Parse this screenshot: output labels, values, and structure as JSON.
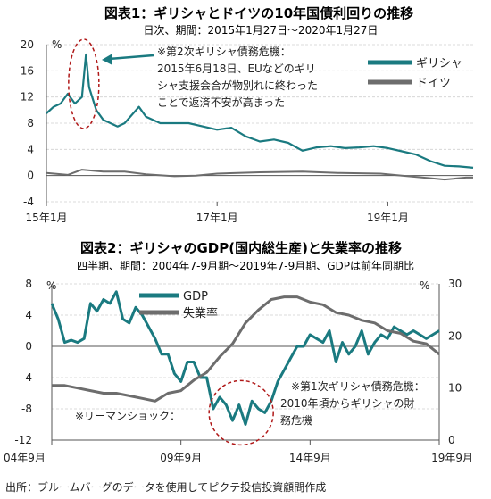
{
  "chart_data": [
    {
      "type": "line",
      "title": "図表1：ギリシャとドイツの10年国債利回りの推移",
      "subtitle": "日次、期間：2015年1月27日～2020年1月27日",
      "y_unit": "%",
      "ylim": [
        -4,
        20
      ],
      "yticks": [
        "20",
        "16",
        "12",
        "8",
        "4",
        "0",
        "-4"
      ],
      "xticks": [
        {
          "x": "2015-01",
          "label": "15年1月"
        },
        {
          "x": "2017-01",
          "label": "17年1月"
        },
        {
          "x": "2019-01",
          "label": "19年1月"
        }
      ],
      "grid": true,
      "legend": "top-right",
      "series": [
        {
          "name": "ギリシャ",
          "color": "#1a7a80",
          "points": [
            [
              "2015-01",
              9.5
            ],
            [
              "2015-02",
              10.5
            ],
            [
              "2015-03",
              11.0
            ],
            [
              "2015-04",
              12.5
            ],
            [
              "2015-05",
              11.0
            ],
            [
              "2015-06",
              12.0
            ],
            [
              "2015-06-18",
              18.5
            ],
            [
              "2015-07",
              13.5
            ],
            [
              "2015-08",
              10.0
            ],
            [
              "2015-09",
              8.5
            ],
            [
              "2015-10",
              8.0
            ],
            [
              "2015-11",
              7.5
            ],
            [
              "2015-12",
              8.0
            ],
            [
              "2016-02",
              10.5
            ],
            [
              "2016-03",
              9.0
            ],
            [
              "2016-05",
              8.0
            ],
            [
              "2016-07",
              8.0
            ],
            [
              "2016-09",
              8.0
            ],
            [
              "2016-11",
              7.5
            ],
            [
              "2017-01",
              7.0
            ],
            [
              "2017-03",
              7.3
            ],
            [
              "2017-05",
              6.0
            ],
            [
              "2017-07",
              5.2
            ],
            [
              "2017-09",
              5.5
            ],
            [
              "2017-11",
              5.0
            ],
            [
              "2018-01",
              3.8
            ],
            [
              "2018-03",
              4.3
            ],
            [
              "2018-05",
              4.5
            ],
            [
              "2018-07",
              4.2
            ],
            [
              "2018-09",
              4.3
            ],
            [
              "2018-11",
              4.5
            ],
            [
              "2019-01",
              4.2
            ],
            [
              "2019-03",
              3.7
            ],
            [
              "2019-05",
              3.2
            ],
            [
              "2019-07",
              2.2
            ],
            [
              "2019-09",
              1.5
            ],
            [
              "2019-11",
              1.4
            ],
            [
              "2020-01",
              1.2
            ]
          ]
        },
        {
          "name": "ドイツ",
          "color": "#6d6d6d",
          "points": [
            [
              "2015-01",
              0.4
            ],
            [
              "2015-04",
              0.1
            ],
            [
              "2015-06",
              0.9
            ],
            [
              "2015-09",
              0.6
            ],
            [
              "2015-12",
              0.6
            ],
            [
              "2016-03",
              0.2
            ],
            [
              "2016-07",
              -0.1
            ],
            [
              "2016-10",
              0.0
            ],
            [
              "2017-01",
              0.3
            ],
            [
              "2017-07",
              0.5
            ],
            [
              "2018-01",
              0.6
            ],
            [
              "2018-06",
              0.4
            ],
            [
              "2018-12",
              0.3
            ],
            [
              "2019-03",
              0.0
            ],
            [
              "2019-07",
              -0.4
            ],
            [
              "2019-09",
              -0.6
            ],
            [
              "2019-12",
              -0.3
            ],
            [
              "2020-01",
              -0.3
            ]
          ]
        }
      ],
      "annotation": {
        "lines": [
          "※第2次ギリシャ債務危機：",
          "2015年6月18日、EUなどのギリ",
          "シャ支援会合が物別れに終わった",
          "ことで返済不安が高まった"
        ],
        "highlight_x": "2015-06",
        "highlight_y": 14
      }
    },
    {
      "type": "line",
      "title": "図表2：ギリシャのGDP(国内総生産)と失業率の推移",
      "subtitle": "四半期、期間：2004年7-9月期～2019年7-9月期、GDPは前年同期比",
      "y_left_unit": "%",
      "y_right_unit": "%",
      "ylim_left": [
        -12,
        8
      ],
      "ylim_right": [
        0,
        30
      ],
      "yticks_left": [
        "8",
        "4",
        "0",
        "-4",
        "-8",
        "-12"
      ],
      "yticks_right": [
        "30",
        "20",
        "10",
        "0"
      ],
      "xticks": [
        {
          "x": "2004-09",
          "label": "04年9月"
        },
        {
          "x": "2009-09",
          "label": "09年9月"
        },
        {
          "x": "2014-09",
          "label": "14年9月"
        },
        {
          "x": "2019-09",
          "label": "19年9月"
        }
      ],
      "grid": true,
      "legend": "top-center",
      "series": [
        {
          "name": "GDP",
          "axis": "left",
          "color": "#1a7a80",
          "points": [
            [
              "2004-09",
              5.5
            ],
            [
              "2004-12",
              3.5
            ],
            [
              "2005-03",
              0.5
            ],
            [
              "2005-06",
              0.8
            ],
            [
              "2005-09",
              0.5
            ],
            [
              "2005-12",
              1.0
            ],
            [
              "2006-03",
              5.5
            ],
            [
              "2006-06",
              4.5
            ],
            [
              "2006-09",
              6.0
            ],
            [
              "2006-12",
              5.5
            ],
            [
              "2007-03",
              7.0
            ],
            [
              "2007-06",
              3.5
            ],
            [
              "2007-09",
              3.0
            ],
            [
              "2007-12",
              5.0
            ],
            [
              "2008-03",
              4.0
            ],
            [
              "2008-06",
              2.5
            ],
            [
              "2008-09",
              1.0
            ],
            [
              "2008-12",
              -1.0
            ],
            [
              "2009-03",
              -1.0
            ],
            [
              "2009-06",
              -3.5
            ],
            [
              "2009-09",
              -4.5
            ],
            [
              "2009-12",
              -2.0
            ],
            [
              "2010-03",
              -2.0
            ],
            [
              "2010-06",
              -4.0
            ],
            [
              "2010-09",
              -4.0
            ],
            [
              "2010-12",
              -8.0
            ],
            [
              "2011-03",
              -6.5
            ],
            [
              "2011-06",
              -7.5
            ],
            [
              "2011-09",
              -9.5
            ],
            [
              "2011-12",
              -7.5
            ],
            [
              "2012-03",
              -10.0
            ],
            [
              "2012-06",
              -7.0
            ],
            [
              "2012-09",
              -8.0
            ],
            [
              "2012-12",
              -8.5
            ],
            [
              "2013-03",
              -7.0
            ],
            [
              "2013-06",
              -4.5
            ],
            [
              "2013-09",
              -3.0
            ],
            [
              "2013-12",
              -1.5
            ],
            [
              "2014-03",
              0.0
            ],
            [
              "2014-06",
              0.0
            ],
            [
              "2014-09",
              1.5
            ],
            [
              "2014-12",
              1.0
            ],
            [
              "2015-03",
              0.5
            ],
            [
              "2015-06",
              2.0
            ],
            [
              "2015-09",
              -2.0
            ],
            [
              "2015-12",
              0.5
            ],
            [
              "2016-03",
              -1.0
            ],
            [
              "2016-06",
              0.0
            ],
            [
              "2016-09",
              2.0
            ],
            [
              "2016-12",
              -1.0
            ],
            [
              "2017-03",
              0.5
            ],
            [
              "2017-06",
              1.5
            ],
            [
              "2017-09",
              1.0
            ],
            [
              "2017-12",
              2.5
            ],
            [
              "2018-03",
              2.0
            ],
            [
              "2018-06",
              1.5
            ],
            [
              "2018-09",
              2.0
            ],
            [
              "2018-12",
              1.5
            ],
            [
              "2019-03",
              1.0
            ],
            [
              "2019-06",
              1.5
            ],
            [
              "2019-09",
              2.0
            ]
          ]
        },
        {
          "name": "失業率",
          "axis": "right",
          "color": "#6d6d6d",
          "points": [
            [
              "2004-09",
              10.5
            ],
            [
              "2005-03",
              10.5
            ],
            [
              "2005-09",
              10.0
            ],
            [
              "2006-03",
              9.5
            ],
            [
              "2006-09",
              9.0
            ],
            [
              "2007-03",
              9.0
            ],
            [
              "2007-09",
              8.5
            ],
            [
              "2008-03",
              8.0
            ],
            [
              "2008-09",
              7.5
            ],
            [
              "2009-03",
              9.0
            ],
            [
              "2009-09",
              9.5
            ],
            [
              "2010-03",
              11.5
            ],
            [
              "2010-09",
              13.0
            ],
            [
              "2011-03",
              16.0
            ],
            [
              "2011-09",
              18.5
            ],
            [
              "2012-03",
              22.5
            ],
            [
              "2012-09",
              25.0
            ],
            [
              "2013-03",
              27.0
            ],
            [
              "2013-09",
              27.5
            ],
            [
              "2014-03",
              27.5
            ],
            [
              "2014-09",
              26.5
            ],
            [
              "2015-03",
              26.0
            ],
            [
              "2015-09",
              24.5
            ],
            [
              "2016-03",
              24.0
            ],
            [
              "2016-09",
              23.0
            ],
            [
              "2017-03",
              22.5
            ],
            [
              "2017-09",
              21.0
            ],
            [
              "2018-03",
              20.5
            ],
            [
              "2018-09",
              19.0
            ],
            [
              "2019-03",
              18.5
            ],
            [
              "2019-09",
              16.5
            ]
          ]
        }
      ],
      "annotations": [
        {
          "lines": [
            "※リーマンショック："
          ],
          "x": "2008-09"
        },
        {
          "lines": [
            "※第1次ギリシャ債務危機：",
            "2010年頃からギリシャの財",
            "務危機"
          ],
          "x": "2011-12"
        }
      ]
    }
  ],
  "source": "出所：ブルームバーグのデータを使用してピクテ投信投資顧問作成"
}
